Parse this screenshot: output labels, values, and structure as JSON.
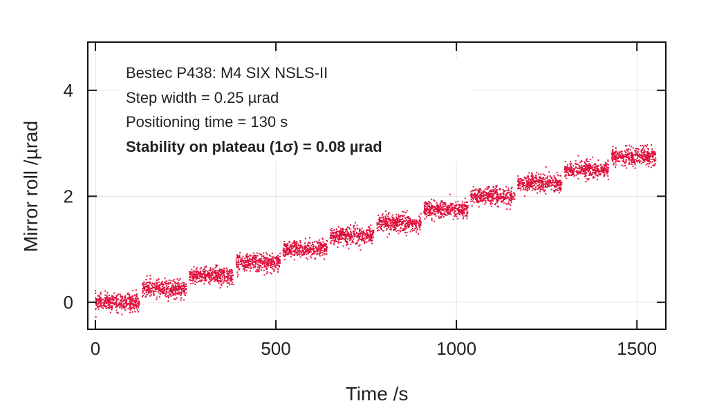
{
  "chart_data": {
    "type": "scatter",
    "title": "",
    "xlabel": "Time /s",
    "ylabel": "Mirror roll /µrad",
    "xlim": [
      -21,
      1580
    ],
    "ylim": [
      -0.51,
      4.91
    ],
    "xticks": [
      0,
      500,
      1000,
      1500
    ],
    "yticks": [
      0,
      2,
      4
    ],
    "grid": true,
    "color": "#e0103c",
    "step_interval_s": 130,
    "plateau_duration_s": 122,
    "plateau_sigma": 0.08,
    "plateaus": [
      {
        "start": 0,
        "value": 0.0
      },
      {
        "start": 130,
        "value": 0.25
      },
      {
        "start": 260,
        "value": 0.5
      },
      {
        "start": 390,
        "value": 0.75
      },
      {
        "start": 520,
        "value": 1.0
      },
      {
        "start": 650,
        "value": 1.25
      },
      {
        "start": 780,
        "value": 1.5
      },
      {
        "start": 910,
        "value": 1.75
      },
      {
        "start": 1040,
        "value": 2.0
      },
      {
        "start": 1170,
        "value": 2.25
      },
      {
        "start": 1300,
        "value": 2.5
      },
      {
        "start": 1430,
        "value": 2.75
      }
    ],
    "annotations": [
      "Bestec P438: M4 SIX NSLS-II",
      "Step width = 0.25 µrad",
      "Positioning time = 130 s",
      "Stability on plateau (1σ) = 0.08 µrad"
    ]
  }
}
